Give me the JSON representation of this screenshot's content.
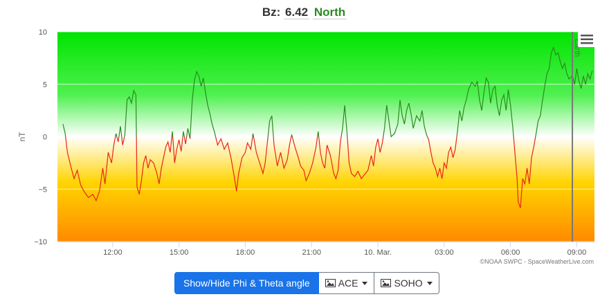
{
  "header": {
    "label": "Bz:",
    "value": "6.42",
    "direction": "North"
  },
  "colors": {
    "north": "#2a8a1f",
    "south": "#e8241a",
    "primary": "#1a73e8"
  },
  "menu_icon": "hamburger-icon",
  "buttons": {
    "toggle_angles": "Show/Hide Phi & Theta angle",
    "ace": "ACE",
    "soho": "SOHO",
    "ace_icon": "image-icon",
    "soho_icon": "image-icon"
  },
  "credits": "©NOAA SWPC - SpaceWeatherLive.com",
  "chart_data": {
    "type": "line",
    "ylabel": "nT",
    "ylim": [
      -10,
      10
    ],
    "yticks": [
      "10",
      "5",
      "0",
      "−5",
      "−10"
    ],
    "ytick_values": [
      10,
      5,
      0,
      -5,
      -10
    ],
    "xticks": [
      {
        "t": 2.5,
        "label": "12:00"
      },
      {
        "t": 5.5,
        "label": "15:00"
      },
      {
        "t": 8.5,
        "label": "18:00"
      },
      {
        "t": 11.5,
        "label": "21:00"
      },
      {
        "t": 14.5,
        "label": "10. Mar."
      },
      {
        "t": 17.5,
        "label": "03:00"
      },
      {
        "t": 20.5,
        "label": "06:00"
      },
      {
        "t": 23.5,
        "label": "09:00"
      }
    ],
    "xlim": [
      0,
      24.3
    ],
    "plotline": {
      "t": 23.3,
      "label": "Earth"
    },
    "series": [
      {
        "points": [
          [
            0.25,
            1.2
          ],
          [
            0.35,
            0.3
          ],
          [
            0.45,
            -1.5
          ],
          [
            0.6,
            -2.8
          ],
          [
            0.75,
            -4.0
          ],
          [
            0.9,
            -3.2
          ],
          [
            1.05,
            -4.6
          ],
          [
            1.2,
            -5.2
          ],
          [
            1.4,
            -5.8
          ],
          [
            1.6,
            -5.5
          ],
          [
            1.75,
            -6.1
          ],
          [
            1.9,
            -5.2
          ],
          [
            2.05,
            -3.0
          ],
          [
            2.15,
            -4.5
          ],
          [
            2.3,
            -1.5
          ],
          [
            2.45,
            -2.5
          ],
          [
            2.55,
            -0.8
          ],
          [
            2.65,
            0.3
          ],
          [
            2.75,
            -0.5
          ],
          [
            2.85,
            1.0
          ],
          [
            2.95,
            -0.8
          ],
          [
            3.05,
            0.2
          ],
          [
            3.15,
            3.5
          ],
          [
            3.25,
            3.8
          ],
          [
            3.35,
            3.2
          ],
          [
            3.45,
            4.4
          ],
          [
            3.55,
            4.0
          ],
          [
            3.6,
            -4.8
          ],
          [
            3.7,
            -5.5
          ],
          [
            3.8,
            -4.2
          ],
          [
            3.9,
            -2.5
          ],
          [
            4.0,
            -1.8
          ],
          [
            4.1,
            -3.0
          ],
          [
            4.2,
            -2.2
          ],
          [
            4.35,
            -2.5
          ],
          [
            4.5,
            -3.5
          ],
          [
            4.6,
            -4.5
          ],
          [
            4.7,
            -3.0
          ],
          [
            4.8,
            -2.0
          ],
          [
            4.9,
            -1.0
          ],
          [
            5.0,
            -0.5
          ],
          [
            5.1,
            -1.5
          ],
          [
            5.2,
            0.5
          ],
          [
            5.3,
            -2.5
          ],
          [
            5.4,
            -1.2
          ],
          [
            5.5,
            -0.3
          ],
          [
            5.6,
            -1.4
          ],
          [
            5.7,
            0.5
          ],
          [
            5.8,
            -0.7
          ],
          [
            5.9,
            0.8
          ],
          [
            6.0,
            -0.2
          ],
          [
            6.1,
            3.5
          ],
          [
            6.2,
            5.4
          ],
          [
            6.3,
            6.2
          ],
          [
            6.4,
            5.8
          ],
          [
            6.5,
            4.8
          ],
          [
            6.6,
            5.6
          ],
          [
            6.7,
            4.2
          ],
          [
            6.8,
            3.0
          ],
          [
            6.9,
            2.2
          ],
          [
            7.0,
            1.2
          ],
          [
            7.1,
            0.5
          ],
          [
            7.25,
            -0.8
          ],
          [
            7.4,
            -0.2
          ],
          [
            7.55,
            -1.2
          ],
          [
            7.7,
            -0.6
          ],
          [
            7.85,
            -2.0
          ],
          [
            8.0,
            -3.8
          ],
          [
            8.1,
            -5.2
          ],
          [
            8.2,
            -3.5
          ],
          [
            8.35,
            -2.0
          ],
          [
            8.5,
            -1.5
          ],
          [
            8.6,
            -0.6
          ],
          [
            8.75,
            -1.2
          ],
          [
            8.85,
            0.3
          ],
          [
            9.0,
            -1.5
          ],
          [
            9.15,
            -2.5
          ],
          [
            9.3,
            -3.5
          ],
          [
            9.4,
            -2.5
          ],
          [
            9.5,
            -0.5
          ],
          [
            9.6,
            1.5
          ],
          [
            9.7,
            2.0
          ],
          [
            9.8,
            -0.8
          ],
          [
            9.95,
            -2.8
          ],
          [
            10.1,
            -1.5
          ],
          [
            10.25,
            -3.0
          ],
          [
            10.4,
            -2.2
          ],
          [
            10.5,
            -0.8
          ],
          [
            10.6,
            0.2
          ],
          [
            10.75,
            -1.0
          ],
          [
            10.9,
            -2.0
          ],
          [
            11.0,
            -2.8
          ],
          [
            11.15,
            -3.2
          ],
          [
            11.25,
            -4.2
          ],
          [
            11.4,
            -3.5
          ],
          [
            11.55,
            -2.5
          ],
          [
            11.7,
            -1.0
          ],
          [
            11.8,
            0.5
          ],
          [
            11.9,
            -1.5
          ],
          [
            12.0,
            -2.5
          ],
          [
            12.1,
            -3.0
          ],
          [
            12.2,
            -0.8
          ],
          [
            12.35,
            -1.8
          ],
          [
            12.5,
            -3.5
          ],
          [
            12.6,
            -4.0
          ],
          [
            12.7,
            -3.2
          ],
          [
            12.8,
            -0.5
          ],
          [
            12.9,
            0.8
          ],
          [
            13.0,
            3.0
          ],
          [
            13.1,
            0.5
          ],
          [
            13.2,
            -2.5
          ],
          [
            13.3,
            -3.5
          ],
          [
            13.45,
            -3.8
          ],
          [
            13.6,
            -3.3
          ],
          [
            13.75,
            -4.0
          ],
          [
            13.9,
            -3.6
          ],
          [
            14.05,
            -3.2
          ],
          [
            14.2,
            -1.8
          ],
          [
            14.3,
            -2.8
          ],
          [
            14.4,
            -1.0
          ],
          [
            14.5,
            -0.2
          ],
          [
            14.6,
            -1.5
          ],
          [
            14.7,
            -0.6
          ],
          [
            14.8,
            0.8
          ],
          [
            14.9,
            3.0
          ],
          [
            15.0,
            1.5
          ],
          [
            15.1,
            0.0
          ],
          [
            15.25,
            0.3
          ],
          [
            15.4,
            1.2
          ],
          [
            15.5,
            3.5
          ],
          [
            15.6,
            2.0
          ],
          [
            15.7,
            1.2
          ],
          [
            15.8,
            2.5
          ],
          [
            15.9,
            3.2
          ],
          [
            16.0,
            2.2
          ],
          [
            16.1,
            0.8
          ],
          [
            16.25,
            2.0
          ],
          [
            16.4,
            1.5
          ],
          [
            16.5,
            2.5
          ],
          [
            16.6,
            1.0
          ],
          [
            16.7,
            0.2
          ],
          [
            16.8,
            -0.3
          ],
          [
            16.9,
            -1.5
          ],
          [
            17.0,
            -2.5
          ],
          [
            17.1,
            -3.0
          ],
          [
            17.2,
            -3.8
          ],
          [
            17.3,
            -3.0
          ],
          [
            17.4,
            -4.0
          ],
          [
            17.5,
            -2.5
          ],
          [
            17.6,
            -3.0
          ],
          [
            17.7,
            -1.5
          ],
          [
            17.8,
            -1.0
          ],
          [
            17.9,
            -2.0
          ],
          [
            18.0,
            -1.2
          ],
          [
            18.1,
            0.5
          ],
          [
            18.2,
            2.5
          ],
          [
            18.3,
            1.5
          ],
          [
            18.4,
            2.8
          ],
          [
            18.5,
            3.5
          ],
          [
            18.6,
            4.5
          ],
          [
            18.75,
            5.2
          ],
          [
            18.9,
            4.8
          ],
          [
            19.0,
            5.3
          ],
          [
            19.1,
            3.5
          ],
          [
            19.2,
            2.5
          ],
          [
            19.3,
            4.2
          ],
          [
            19.4,
            5.6
          ],
          [
            19.5,
            5.2
          ],
          [
            19.6,
            3.2
          ],
          [
            19.7,
            4.5
          ],
          [
            19.8,
            4.8
          ],
          [
            19.9,
            3.0
          ],
          [
            20.0,
            2.0
          ],
          [
            20.1,
            3.5
          ],
          [
            20.2,
            4.0
          ],
          [
            20.3,
            2.5
          ],
          [
            20.4,
            4.5
          ],
          [
            20.5,
            3.0
          ],
          [
            20.6,
            1.0
          ],
          [
            20.7,
            -1.5
          ],
          [
            20.8,
            -4.0
          ],
          [
            20.85,
            -6.2
          ],
          [
            20.95,
            -6.8
          ],
          [
            21.05,
            -4.0
          ],
          [
            21.15,
            -4.5
          ],
          [
            21.25,
            -3.0
          ],
          [
            21.35,
            -4.5
          ],
          [
            21.45,
            -2.0
          ],
          [
            21.55,
            -1.0
          ],
          [
            21.65,
            0.2
          ],
          [
            21.75,
            1.5
          ],
          [
            21.85,
            2.0
          ],
          [
            21.95,
            3.5
          ],
          [
            22.05,
            4.8
          ],
          [
            22.15,
            6.0
          ],
          [
            22.25,
            6.5
          ],
          [
            22.35,
            8.0
          ],
          [
            22.45,
            8.5
          ],
          [
            22.55,
            7.8
          ],
          [
            22.65,
            8.0
          ],
          [
            22.75,
            7.2
          ],
          [
            22.85,
            6.5
          ],
          [
            22.95,
            7.0
          ],
          [
            23.05,
            6.0
          ],
          [
            23.15,
            5.5
          ],
          [
            23.3,
            5.8
          ],
          [
            23.4,
            5.0
          ],
          [
            23.5,
            6.5
          ],
          [
            23.6,
            5.3
          ],
          [
            23.7,
            4.6
          ],
          [
            23.8,
            5.8
          ],
          [
            23.9,
            5.0
          ],
          [
            24.0,
            6.0
          ],
          [
            24.1,
            5.5
          ],
          [
            24.2,
            6.3
          ]
        ]
      }
    ]
  }
}
